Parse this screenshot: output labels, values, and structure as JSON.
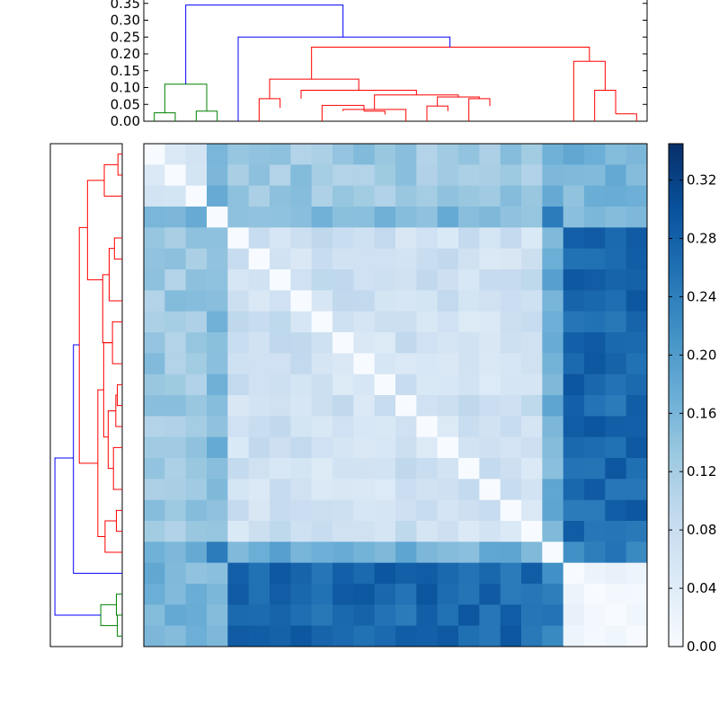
{
  "chart_data": [
    {
      "type": "dendrogram",
      "orientation": "top",
      "yticks": [
        "0.00",
        "0.05",
        "0.10",
        "0.15",
        "0.20",
        "0.25",
        "0.30",
        "0.35"
      ],
      "ylim": [
        0,
        0.36
      ],
      "leaf_count": 24,
      "colors": {
        "cluster_a": "#008000",
        "cluster_b": "#ff0000",
        "root": "#0000ff"
      },
      "links": [
        {
          "c": "cluster_a",
          "x": [
            0.5,
            0.5,
            1.5,
            1.5
          ],
          "y": [
            0,
            0.025,
            0.025,
            0
          ]
        },
        {
          "c": "cluster_a",
          "x": [
            2.5,
            2.5,
            3.5,
            3.5
          ],
          "y": [
            0,
            0.03,
            0.03,
            0
          ]
        },
        {
          "c": "cluster_a",
          "x": [
            1.0,
            1.0,
            3.0,
            3.0
          ],
          "y": [
            0.025,
            0.11,
            0.11,
            0.03
          ]
        },
        {
          "c": "cluster_b",
          "x": [
            5.5,
            5.5,
            6.5,
            6.5
          ],
          "y": [
            0,
            0.067,
            0.067,
            0.04
          ]
        },
        {
          "c": "cluster_b",
          "x": [
            8.5,
            8.5,
            10.5,
            10.5
          ],
          "y": [
            0,
            0.047,
            0.047,
            0.03
          ]
        },
        {
          "c": "cluster_b",
          "x": [
            10.5,
            10.5,
            11.5,
            11.5
          ],
          "y": [
            0.03,
            0.03,
            0.03,
            0.02
          ]
        },
        {
          "c": "cluster_b",
          "x": [
            9.5,
            9.5,
            12.5,
            12.5
          ],
          "y": [
            0.03,
            0.035,
            0.035,
            0
          ]
        },
        {
          "c": "cluster_b",
          "x": [
            13.5,
            13.5,
            14.5,
            14.5
          ],
          "y": [
            0,
            0.045,
            0.045,
            0.03
          ]
        },
        {
          "c": "cluster_b",
          "x": [
            15.5,
            15.5,
            16.5,
            16.5
          ],
          "y": [
            0,
            0.067,
            0.067,
            0.045
          ]
        },
        {
          "c": "cluster_b",
          "x": [
            14.0,
            14.0,
            16.0,
            16.0
          ],
          "y": [
            0.045,
            0.072,
            0.072,
            0.067
          ]
        },
        {
          "c": "cluster_b",
          "x": [
            11.0,
            11.0,
            15.0,
            15.0
          ],
          "y": [
            0.035,
            0.078,
            0.078,
            0.072
          ]
        },
        {
          "c": "cluster_b",
          "x": [
            7.5,
            7.5,
            13.0,
            13.0
          ],
          "y": [
            0.067,
            0.092,
            0.092,
            0.078
          ]
        },
        {
          "c": "cluster_b",
          "x": [
            6.0,
            6.0,
            10.25,
            10.25
          ],
          "y": [
            0.067,
            0.125,
            0.125,
            0.092
          ]
        },
        {
          "c": "cluster_b",
          "x": [
            21.5,
            21.5,
            22.5,
            22.5
          ],
          "y": [
            0,
            0.092,
            0.092,
            0.022
          ]
        },
        {
          "c": "cluster_b",
          "x": [
            22.5,
            22.5,
            23.5,
            23.5
          ],
          "y": [
            0.022,
            0.022,
            0.022,
            0
          ]
        },
        {
          "c": "cluster_b",
          "x": [
            20.5,
            20.5,
            22.0,
            22.0
          ],
          "y": [
            0,
            0.178,
            0.178,
            0.092
          ]
        },
        {
          "c": "cluster_b",
          "x": [
            8.0,
            8.0,
            21.25,
            21.25
          ],
          "y": [
            0.125,
            0.22,
            0.22,
            0.178
          ]
        },
        {
          "c": "root",
          "x": [
            4.5,
            4.5,
            14.6,
            14.6
          ],
          "y": [
            0,
            0.25,
            0.25,
            0.22
          ]
        },
        {
          "c": "root",
          "x": [
            2.0,
            2.0,
            9.5,
            9.5
          ],
          "y": [
            0.11,
            0.345,
            0.345,
            0.25
          ]
        }
      ]
    },
    {
      "type": "dendrogram",
      "orientation": "left",
      "leaf_count": 24,
      "colors": {
        "cluster_a": "#008000",
        "cluster_b": "#ff0000",
        "root": "#0000ff"
      },
      "links": [
        {
          "c": "cluster_b",
          "y": [
            0.5,
            0.5,
            1.5,
            1.5
          ],
          "x": [
            0,
            0.022,
            0.022,
            0
          ]
        },
        {
          "c": "cluster_b",
          "y": [
            1.0,
            1.0,
            2.5,
            2.5
          ],
          "x": [
            0.022,
            0.092,
            0.092,
            0
          ]
        },
        {
          "c": "cluster_b",
          "y": [
            1.75,
            1.75,
            6.5,
            6.5
          ],
          "x": [
            0.092,
            0.178,
            0.178,
            0.1
          ]
        },
        {
          "c": "cluster_b",
          "y": [
            4.5,
            4.5,
            5.5,
            5.5
          ],
          "x": [
            0,
            0.04,
            0.04,
            0
          ]
        },
        {
          "c": "cluster_b",
          "y": [
            5.0,
            5.0,
            7.5,
            7.5
          ],
          "x": [
            0.04,
            0.067,
            0.067,
            0
          ]
        },
        {
          "c": "cluster_b",
          "y": [
            6.25,
            6.25,
            9.5,
            9.5
          ],
          "x": [
            0.067,
            0.1,
            0.1,
            0.05
          ]
        },
        {
          "c": "cluster_b",
          "y": [
            8.5,
            8.5,
            10.5,
            10.5
          ],
          "x": [
            0,
            0.05,
            0.05,
            0
          ]
        },
        {
          "c": "cluster_b",
          "y": [
            11.5,
            11.5,
            12.5,
            12.5
          ],
          "x": [
            0,
            0.025,
            0.025,
            0
          ]
        },
        {
          "c": "cluster_b",
          "y": [
            12.0,
            12.0,
            13.5,
            13.5
          ],
          "x": [
            0.025,
            0.033,
            0.033,
            0
          ]
        },
        {
          "c": "cluster_b",
          "y": [
            12.75,
            12.75,
            15.5,
            15.5
          ],
          "x": [
            0.033,
            0.072,
            0.072,
            0.045
          ]
        },
        {
          "c": "cluster_b",
          "y": [
            14.5,
            14.5,
            16.5,
            16.5
          ],
          "x": [
            0,
            0.045,
            0.045,
            0
          ]
        },
        {
          "c": "cluster_b",
          "y": [
            17.5,
            17.5,
            18.5,
            18.5
          ],
          "x": [
            0,
            0.03,
            0.03,
            0
          ]
        },
        {
          "c": "cluster_b",
          "y": [
            18.0,
            18.0,
            19.5,
            19.5
          ],
          "x": [
            0.03,
            0.088,
            0.088,
            0
          ]
        },
        {
          "c": "cluster_b",
          "y": [
            9.5,
            9.5,
            14.0,
            14.0
          ],
          "x": [
            0.05,
            0.095,
            0.095,
            0.072
          ]
        },
        {
          "c": "cluster_b",
          "y": [
            11.75,
            11.75,
            18.75,
            18.75
          ],
          "x": [
            0.095,
            0.125,
            0.125,
            0.088
          ]
        },
        {
          "c": "cluster_b",
          "y": [
            4.0,
            4.0,
            15.25,
            15.25
          ],
          "x": [
            0.178,
            0.22,
            0.22,
            0.125
          ]
        },
        {
          "c": "root",
          "y": [
            9.6,
            9.6,
            20.5,
            20.5
          ],
          "x": [
            0.22,
            0.25,
            0.25,
            0
          ]
        },
        {
          "c": "cluster_a",
          "y": [
            21.5,
            21.5,
            22.5,
            22.5
          ],
          "x": [
            0,
            0.03,
            0.03,
            0
          ]
        },
        {
          "c": "cluster_a",
          "y": [
            22.5,
            22.5,
            23.5,
            23.5
          ],
          "x": [
            0,
            0.025,
            0.025,
            0
          ]
        },
        {
          "c": "cluster_a",
          "y": [
            22.0,
            22.0,
            23.0,
            23.0
          ],
          "x": [
            0.03,
            0.11,
            0.11,
            0.025
          ]
        },
        {
          "c": "root",
          "y": [
            15.0,
            15.0,
            22.5,
            22.5
          ],
          "x": [
            0.25,
            0.345,
            0.345,
            0.11
          ]
        }
      ]
    },
    {
      "type": "heatmap",
      "rows": 24,
      "cols": 24,
      "vmin": 0,
      "vmax": 0.345,
      "group_boundaries": [
        4,
        5,
        20,
        21
      ],
      "values_description": "symmetric distance matrix",
      "block_levels": {
        "aa": 0.03,
        "ab": 0.24,
        "ac": 0.27,
        "ad": 0.17,
        "ae": 0.16,
        "bb": 0.0,
        "bc": 0.17,
        "bd": 0.23,
        "be": 0.18,
        "cc": 0.07,
        "cd": 0.16,
        "ce": 0.13,
        "dd": 0.0,
        "de": 0.17,
        "ee": 0.06
      }
    },
    {
      "type": "colorbar",
      "ticks": [
        "0.00",
        "0.04",
        "0.08",
        "0.12",
        "0.16",
        "0.20",
        "0.24",
        "0.28",
        "0.32"
      ],
      "vmin": 0,
      "vmax": 0.345,
      "colormap": "Blues"
    }
  ]
}
